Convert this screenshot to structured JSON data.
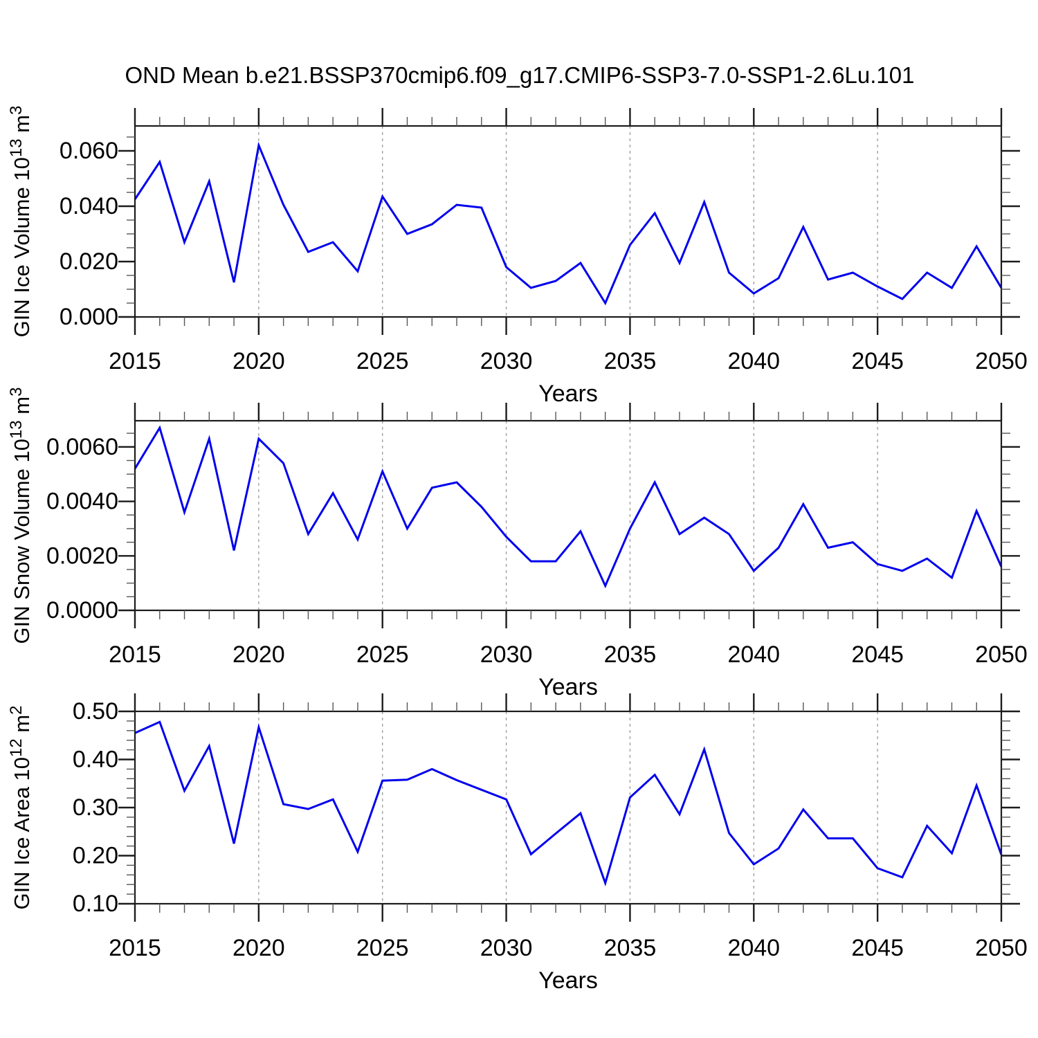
{
  "title": "OND Mean b.e21.BSSP370cmip6.f09_g17.CMIP6-SSP3-7.0-SSP1-2.6Lu.101",
  "x_axis_label": "Years",
  "x_range": [
    2015,
    2050
  ],
  "years": [
    2015,
    2016,
    2017,
    2018,
    2019,
    2020,
    2021,
    2022,
    2023,
    2024,
    2025,
    2026,
    2027,
    2028,
    2029,
    2030,
    2031,
    2032,
    2033,
    2034,
    2035,
    2036,
    2037,
    2038,
    2039,
    2040,
    2041,
    2042,
    2043,
    2044,
    2045,
    2046,
    2047,
    2048,
    2049,
    2050
  ],
  "x_tick_years": [
    2015,
    2020,
    2025,
    2030,
    2035,
    2040,
    2045,
    2050
  ],
  "grid_years": [
    2020,
    2025,
    2030,
    2035,
    2040,
    2045
  ],
  "colors": {
    "line": "#0000ee",
    "axis": "#1c1c1c",
    "minor_tick": "#555555",
    "grid": "#999999",
    "text": "#000000"
  },
  "chart_data": [
    {
      "type": "line",
      "title": "OND Mean b.e21.BSSP370cmip6.f09_g17.CMIP6-SSP3-7.0-SSP1-2.6Lu.101",
      "xlabel": "Years",
      "ylabel_plain": "GIN Ice Volume 10^13 m^3",
      "ylabel": {
        "prefix": "GIN Ice Volume 10",
        "sup1": "13",
        "mid": " m",
        "sup2": "3"
      },
      "ylim": [
        0,
        0.069
      ],
      "yticks": [
        {
          "v": 0.0,
          "label": "0.000"
        },
        {
          "v": 0.02,
          "label": "0.020"
        },
        {
          "v": 0.04,
          "label": "0.040"
        },
        {
          "v": 0.06,
          "label": "0.060"
        }
      ],
      "minor_step": 0.005,
      "x": [
        2015,
        2016,
        2017,
        2018,
        2019,
        2020,
        2021,
        2022,
        2023,
        2024,
        2025,
        2026,
        2027,
        2028,
        2029,
        2030,
        2031,
        2032,
        2033,
        2034,
        2035,
        2036,
        2037,
        2038,
        2039,
        2040,
        2041,
        2042,
        2043,
        2044,
        2045,
        2046,
        2047,
        2048,
        2049,
        2050
      ],
      "values": [
        0.0425,
        0.056,
        0.027,
        0.049,
        0.0125,
        0.062,
        0.0405,
        0.0235,
        0.027,
        0.0165,
        0.0435,
        0.03,
        0.0335,
        0.0405,
        0.0395,
        0.018,
        0.0105,
        0.013,
        0.0195,
        0.005,
        0.026,
        0.0375,
        0.0195,
        0.0415,
        0.016,
        0.0085,
        0.014,
        0.0325,
        0.0135,
        0.016,
        0.011,
        0.0065,
        0.016,
        0.0105,
        0.0255,
        0.0105
      ]
    },
    {
      "type": "line",
      "title": "",
      "xlabel": "Years",
      "ylabel_plain": "GIN Snow Volume 10^13 m^3",
      "ylabel": {
        "prefix": "GIN Snow Volume 10",
        "sup1": "13",
        "mid": " m",
        "sup2": "3"
      },
      "ylim": [
        0,
        0.00696
      ],
      "yticks": [
        {
          "v": 0.0,
          "label": "0.0000"
        },
        {
          "v": 0.002,
          "label": "0.0020"
        },
        {
          "v": 0.004,
          "label": "0.0040"
        },
        {
          "v": 0.006,
          "label": "0.0060"
        }
      ],
      "minor_step": 0.0005,
      "x": [
        2015,
        2016,
        2017,
        2018,
        2019,
        2020,
        2021,
        2022,
        2023,
        2024,
        2025,
        2026,
        2027,
        2028,
        2029,
        2030,
        2031,
        2032,
        2033,
        2034,
        2035,
        2036,
        2037,
        2038,
        2039,
        2040,
        2041,
        2042,
        2043,
        2044,
        2045,
        2046,
        2047,
        2048,
        2049,
        2050
      ],
      "values": [
        0.0052,
        0.0067,
        0.0036,
        0.0063,
        0.0022,
        0.0063,
        0.0054,
        0.0028,
        0.0043,
        0.0026,
        0.0051,
        0.003,
        0.0045,
        0.0047,
        0.0038,
        0.0027,
        0.0018,
        0.0018,
        0.0029,
        0.0009,
        0.003,
        0.0047,
        0.0028,
        0.0034,
        0.0028,
        0.00145,
        0.0023,
        0.0039,
        0.0023,
        0.0025,
        0.0017,
        0.00145,
        0.0019,
        0.0012,
        0.00365,
        0.0016
      ]
    },
    {
      "type": "line",
      "title": "",
      "xlabel": "Years",
      "ylabel_plain": "GIN Ice Area 10^12 m^2",
      "ylabel": {
        "prefix": "GIN Ice Area 10",
        "sup1": "12",
        "mid": " m",
        "sup2": "2"
      },
      "ylim": [
        0.1,
        0.5
      ],
      "yticks": [
        {
          "v": 0.1,
          "label": "0.10"
        },
        {
          "v": 0.2,
          "label": "0.20"
        },
        {
          "v": 0.3,
          "label": "0.30"
        },
        {
          "v": 0.4,
          "label": "0.40"
        },
        {
          "v": 0.5,
          "label": "0.50"
        }
      ],
      "minor_step": 0.02,
      "x": [
        2015,
        2016,
        2017,
        2018,
        2019,
        2020,
        2021,
        2022,
        2023,
        2024,
        2025,
        2026,
        2027,
        2028,
        2029,
        2030,
        2031,
        2032,
        2033,
        2034,
        2035,
        2036,
        2037,
        2038,
        2039,
        2040,
        2041,
        2042,
        2043,
        2044,
        2045,
        2046,
        2047,
        2048,
        2049,
        2050
      ],
      "values": [
        0.455,
        0.478,
        0.335,
        0.428,
        0.225,
        0.467,
        0.307,
        0.297,
        0.317,
        0.208,
        0.356,
        0.358,
        0.38,
        0.357,
        0.337,
        0.317,
        0.203,
        0.246,
        0.288,
        0.143,
        0.321,
        0.368,
        0.286,
        0.421,
        0.247,
        0.182,
        0.215,
        0.296,
        0.236,
        0.236,
        0.174,
        0.155,
        0.262,
        0.205,
        0.346,
        0.202
      ]
    }
  ]
}
